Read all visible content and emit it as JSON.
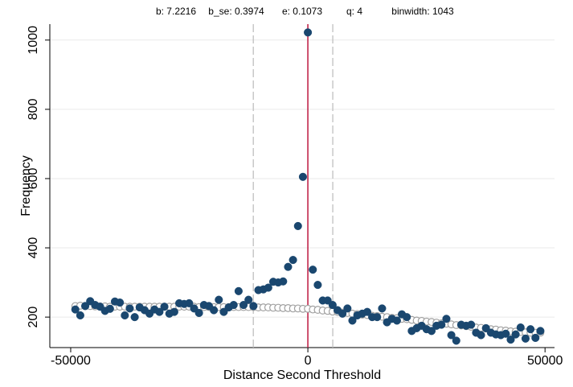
{
  "chart_data": {
    "type": "scatter",
    "annotations": [
      "b: 7.2216",
      "b_se: 0.3974",
      "e: 0.1073",
      "q: 4",
      "binwidth: 1043"
    ],
    "x_label": "Distance Second Threshold",
    "y_label": "Frequency",
    "xlim": [
      -54400,
      52000
    ],
    "ylim": [
      112,
      1046
    ],
    "xticks": [
      -50000,
      0,
      50000
    ],
    "yticks": [
      200,
      400,
      600,
      800,
      1000
    ],
    "grid": true,
    "vlines": [
      {
        "x": -11500,
        "color": "#c0c0c0",
        "dash": true
      },
      {
        "x": 0,
        "color": "#c0264b",
        "dash": false
      },
      {
        "x": 5250,
        "color": "#c0c0c0",
        "dash": true
      }
    ],
    "x": [
      -49021,
      -47978,
      -46935,
      -45892,
      -44849,
      -43806,
      -42763,
      -41720,
      -40677,
      -39634,
      -38591,
      -37548,
      -36505,
      -35462,
      -34419,
      -33376,
      -32333,
      -31290,
      -30247,
      -29204,
      -28161,
      -27118,
      -26075,
      -25032,
      -23989,
      -22946,
      -21903,
      -20860,
      -19817,
      -18774,
      -17731,
      -16688,
      -15645,
      -14602,
      -13559,
      -12516,
      -11473,
      -10430,
      -9387,
      -8344,
      -7301,
      -6258,
      -5215,
      -4172,
      -3129,
      -2086,
      -1043,
      0,
      1043,
      2086,
      3129,
      4172,
      5215,
      6258,
      7301,
      8344,
      9387,
      10430,
      11473,
      12516,
      13559,
      14602,
      15645,
      16688,
      17731,
      18774,
      19817,
      20860,
      21903,
      22946,
      23989,
      25032,
      26075,
      27118,
      28161,
      29204,
      30247,
      31290,
      32333,
      33376,
      34419,
      35462,
      36505,
      37548,
      38591,
      39634,
      40677,
      41720,
      42763,
      43806,
      44849,
      45892,
      46935,
      47978,
      49021
    ],
    "series": [
      {
        "color": "#a0a0a0",
        "hollow": true,
        "values": [
          232,
          233,
          232,
          232,
          231,
          231,
          231,
          230,
          230,
          230,
          230,
          230,
          230,
          230,
          230,
          230,
          230,
          230,
          230,
          230,
          230,
          230,
          230,
          230,
          230,
          229,
          229,
          229,
          229,
          229,
          229,
          229,
          229,
          229,
          229,
          229,
          229,
          228,
          228,
          228,
          227,
          227,
          226,
          226,
          225,
          225,
          224,
          224,
          222,
          221,
          219,
          218,
          216,
          215,
          213,
          212,
          210,
          209,
          207,
          206,
          204,
          203,
          201,
          200,
          198,
          197,
          195,
          194,
          192,
          190,
          189,
          187,
          186,
          184,
          182,
          181,
          179,
          177,
          176,
          174,
          172,
          170,
          169,
          167,
          165,
          164,
          162,
          161,
          159,
          158,
          157,
          156,
          155,
          155,
          155
        ]
      },
      {
        "color": "#1a476f",
        "hollow": false,
        "values": [
          222,
          205,
          232,
          246,
          235,
          230,
          218,
          224,
          245,
          242,
          205,
          225,
          200,
          228,
          220,
          210,
          222,
          215,
          230,
          210,
          215,
          240,
          238,
          240,
          225,
          212,
          235,
          232,
          220,
          250,
          215,
          228,
          235,
          275,
          235,
          250,
          232,
          278,
          280,
          285,
          302,
          300,
          303,
          345,
          365,
          463,
          605,
          1022,
          337,
          293,
          248,
          248,
          235,
          220,
          210,
          225,
          190,
          205,
          210,
          215,
          200,
          200,
          225,
          185,
          195,
          190,
          208,
          200,
          160,
          168,
          175,
          165,
          160,
          175,
          178,
          195,
          148,
          132,
          178,
          175,
          178,
          155,
          148,
          168,
          155,
          150,
          148,
          152,
          135,
          150,
          170,
          138,
          165,
          140,
          160
        ]
      }
    ]
  }
}
